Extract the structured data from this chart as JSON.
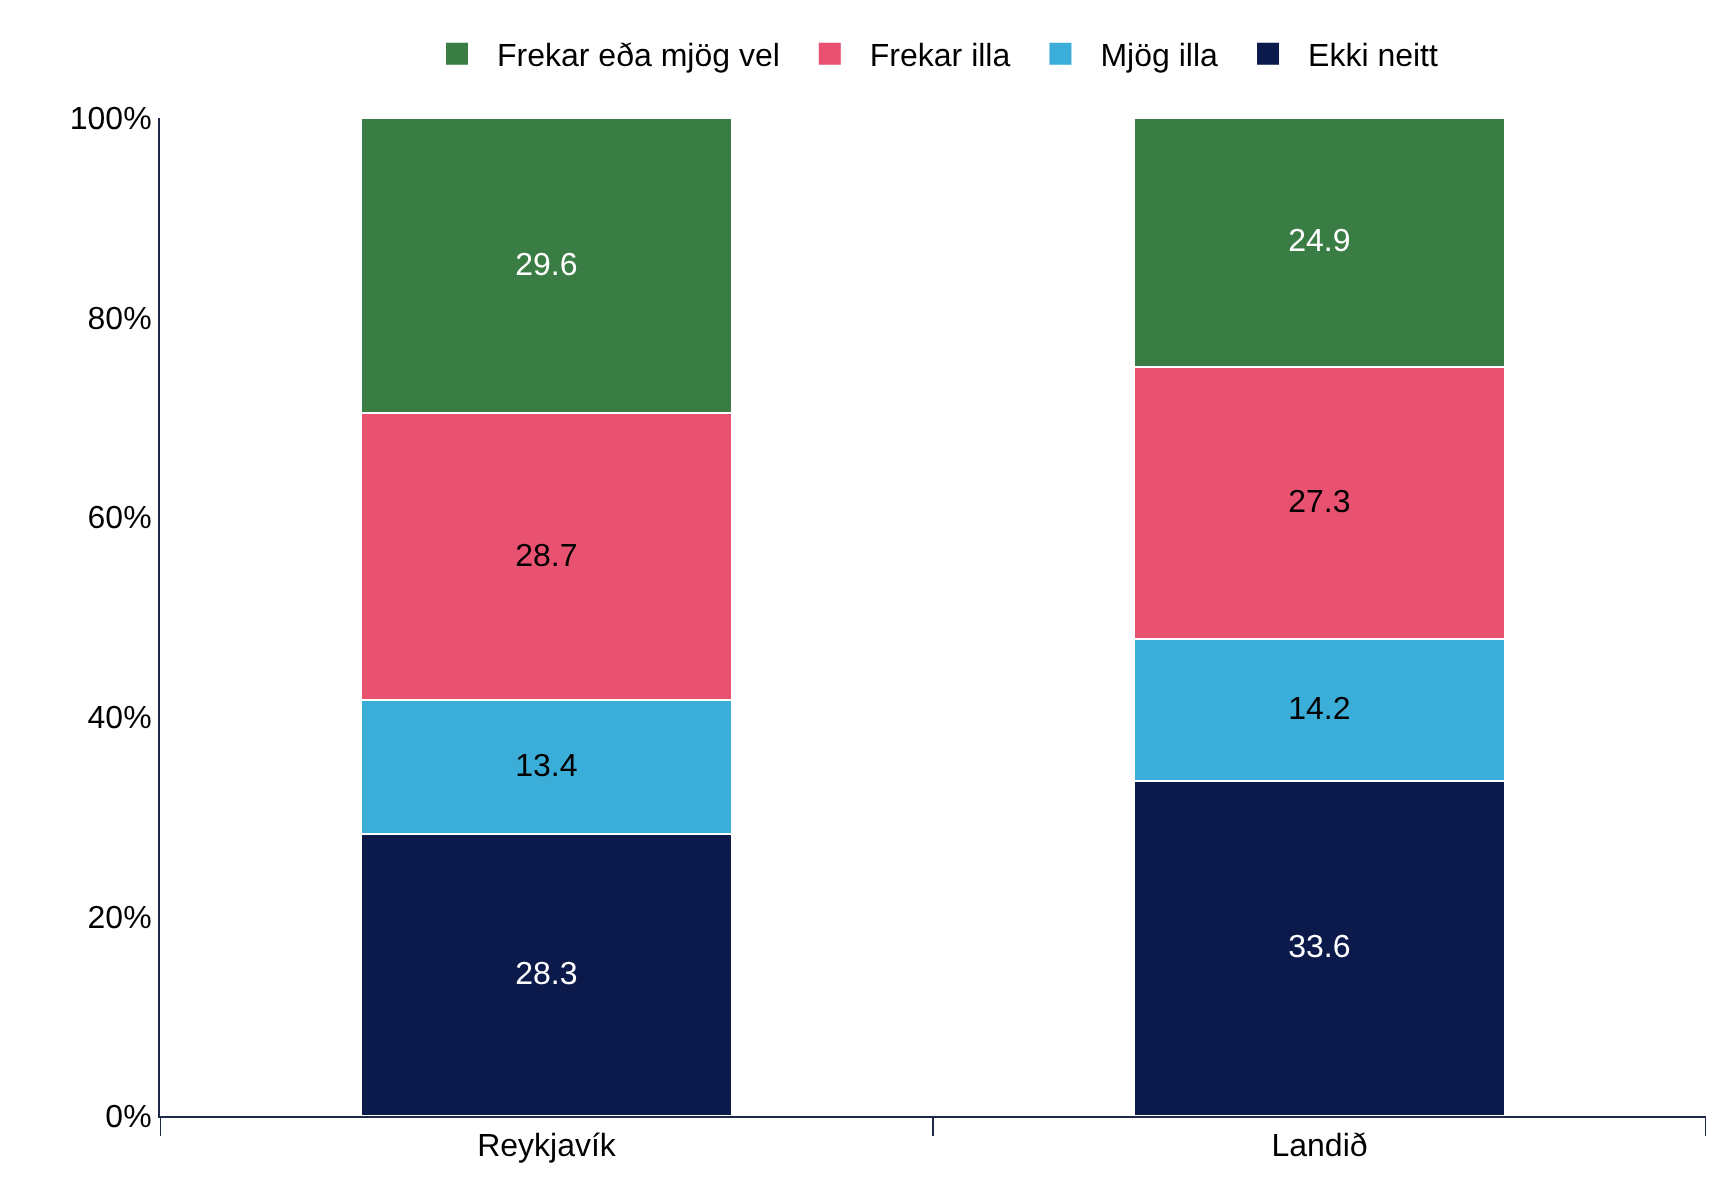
{
  "chart_data": {
    "type": "bar",
    "stacked": true,
    "categories": [
      "Reykjavík",
      "Landið"
    ],
    "series": [
      {
        "name": "Ekki neitt",
        "color": "#0b1a4b",
        "values": [
          28.3,
          33.6
        ]
      },
      {
        "name": "Mjög illa",
        "color": "#3aaed8",
        "values": [
          13.4,
          14.2
        ]
      },
      {
        "name": "Frekar illa",
        "color": "#e8516f",
        "values": [
          28.7,
          27.3
        ]
      },
      {
        "name": "Frekar eða mjög vel",
        "color": "#3a7d44",
        "values": [
          29.6,
          24.9
        ]
      }
    ],
    "ylim": [
      0,
      100
    ],
    "yticks": [
      {
        "value": 0,
        "label": "0%"
      },
      {
        "value": 20,
        "label": "20%"
      },
      {
        "value": 40,
        "label": "40%"
      },
      {
        "value": 60,
        "label": "60%"
      },
      {
        "value": 80,
        "label": "80%"
      },
      {
        "value": 100,
        "label": "100%"
      }
    ],
    "data_labels": true,
    "legend": "top"
  }
}
